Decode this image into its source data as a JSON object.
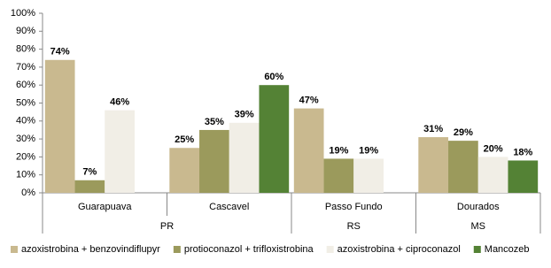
{
  "chart_data": {
    "type": "bar",
    "groups": [
      {
        "name": "PR",
        "categories": [
          "Guarapuava",
          "Cascavel"
        ]
      },
      {
        "name": "RS",
        "categories": [
          "Passo Fundo"
        ]
      },
      {
        "name": "MS",
        "categories": [
          "Dourados"
        ]
      }
    ],
    "series": [
      {
        "name": "azoxistrobina + benzovindiflupyr",
        "color": "#c9b98f",
        "values": [
          74,
          25,
          47,
          31
        ],
        "value_labels": [
          "74%",
          "25%",
          "47%",
          "31%"
        ]
      },
      {
        "name": "protioconazol + trifloxistrobina",
        "color": "#9b9a5c",
        "values": [
          7,
          35,
          19,
          29
        ],
        "value_labels": [
          "7%",
          "35%",
          "19%",
          "29%"
        ]
      },
      {
        "name": "azoxistrobina + ciproconazol",
        "color": "#f1eee6",
        "values": [
          46,
          39,
          19,
          20
        ],
        "value_labels": [
          "46%",
          "39%",
          "19%",
          "20%"
        ]
      },
      {
        "name": "Mancozeb",
        "color": "#548235",
        "values": [
          null,
          60,
          null,
          18
        ],
        "value_labels": [
          null,
          "60%",
          null,
          "18%"
        ]
      }
    ],
    "ylim": [
      0,
      100
    ],
    "yticks": [
      {
        "value": 0,
        "label": "0%"
      },
      {
        "value": 10,
        "label": "10%"
      },
      {
        "value": 20,
        "label": "20%"
      },
      {
        "value": 30,
        "label": "30%"
      },
      {
        "value": 40,
        "label": "40%"
      },
      {
        "value": 50,
        "label": "50%"
      },
      {
        "value": 60,
        "label": "60%"
      },
      {
        "value": 70,
        "label": "70%"
      },
      {
        "value": 80,
        "label": "80%"
      },
      {
        "value": 90,
        "label": "90%"
      },
      {
        "value": 100,
        "label": "100%"
      }
    ],
    "grid": false
  }
}
